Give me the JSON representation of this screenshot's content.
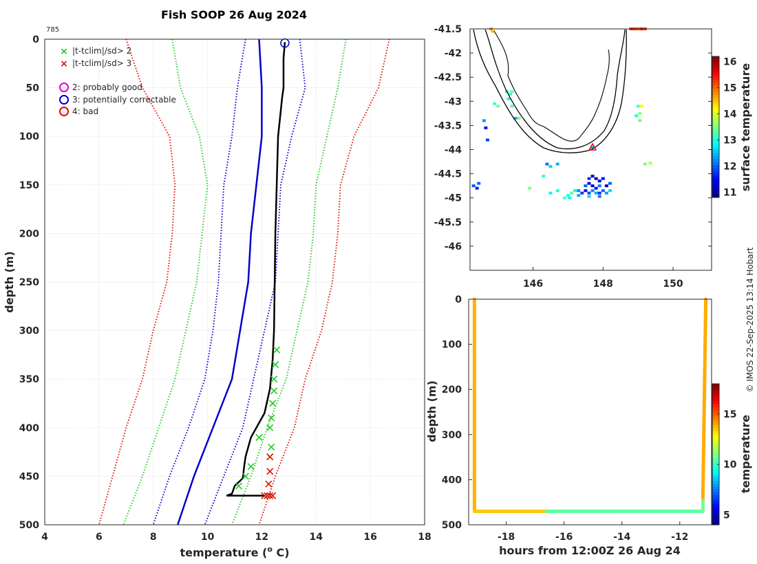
{
  "figure": {
    "title": "Fish SOOP 26 Aug 2024",
    "profile_id": "785",
    "credit": "© IMOS 22-Sep-2025 13:14 Hobart"
  },
  "colors": {
    "sd1": "#0000cc",
    "sd2": "#22cc22",
    "sd3": "#dd1100",
    "profile": "#000000",
    "flag_good": "#dd00dd",
    "flag_correctable": "#0000cc",
    "flag_bad": "#ee0000",
    "coast": "#000000"
  },
  "chart_data": [
    {
      "type": "line",
      "name": "profile",
      "xlabel": "temperature (",
      "xlabel_sup": "o",
      "xlabel_tail": " C)",
      "ylabel": "depth (m)",
      "xlim": [
        4,
        18
      ],
      "ylim": [
        500,
        0
      ],
      "xticks": [
        4,
        6,
        8,
        10,
        12,
        14,
        16,
        18
      ],
      "yticks": [
        0,
        50,
        100,
        150,
        200,
        250,
        300,
        350,
        400,
        450,
        500
      ],
      "grid": true,
      "legend": [
        {
          "label": "|t-tclim|/sd> 2",
          "marker": "x",
          "color": "#22cc22"
        },
        {
          "label": "|t-tclim|/sd> 3",
          "marker": "x",
          "color": "#dd1100"
        },
        {
          "label": "2: probably good",
          "marker": "o",
          "color": "#dd00dd"
        },
        {
          "label": "3: potentially correctable",
          "marker": "o",
          "color": "#0000cc"
        },
        {
          "label": "4: bad",
          "marker": "o",
          "color": "#ee0000"
        }
      ],
      "clim_lines": [
        {
          "name": "clim_mean",
          "style": "solid",
          "color": "#0000cc",
          "depth": [
            0,
            50,
            100,
            150,
            200,
            250,
            300,
            350,
            400,
            450,
            500
          ],
          "temp": [
            11.9,
            12.0,
            12.0,
            11.8,
            11.6,
            11.5,
            11.2,
            10.9,
            10.2,
            9.5,
            8.9
          ]
        },
        {
          "name": "minus_1sd",
          "style": "dotted",
          "color": "#0000cc",
          "depth": [
            0,
            50,
            100,
            150,
            200,
            250,
            300,
            350,
            400,
            450,
            500
          ],
          "temp": [
            11.4,
            11.1,
            10.9,
            10.6,
            10.5,
            10.4,
            10.2,
            9.9,
            9.3,
            8.6,
            8.0
          ]
        },
        {
          "name": "plus_1sd",
          "style": "dotted",
          "color": "#0000cc",
          "depth": [
            0,
            50,
            100,
            150,
            200,
            250,
            300,
            350,
            400,
            450,
            500
          ],
          "temp": [
            13.4,
            13.6,
            13.1,
            12.7,
            12.6,
            12.5,
            12.1,
            11.7,
            11.3,
            10.6,
            9.9
          ]
        },
        {
          "name": "minus_2sd",
          "style": "dotted",
          "color": "#22cc22",
          "depth": [
            0,
            50,
            100,
            150,
            200,
            250,
            300,
            350,
            400,
            450,
            500
          ],
          "temp": [
            8.7,
            9.0,
            9.7,
            10.0,
            9.8,
            9.6,
            9.2,
            8.8,
            8.2,
            7.6,
            6.9
          ]
        },
        {
          "name": "plus_2sd",
          "style": "dotted",
          "color": "#22cc22",
          "depth": [
            0,
            50,
            100,
            150,
            200,
            250,
            300,
            350,
            400,
            450,
            500
          ],
          "temp": [
            15.1,
            14.8,
            14.4,
            14.0,
            13.9,
            13.7,
            13.3,
            12.9,
            12.2,
            11.6,
            10.9
          ]
        },
        {
          "name": "minus_3sd",
          "style": "dotted",
          "color": "#dd1100",
          "depth": [
            0,
            50,
            100,
            150,
            200,
            250,
            300,
            350,
            400,
            450,
            500
          ],
          "temp": [
            7.0,
            7.6,
            8.6,
            8.8,
            8.7,
            8.5,
            8.0,
            7.6,
            7.0,
            6.5,
            6.0
          ]
        },
        {
          "name": "plus_3sd",
          "style": "dotted",
          "color": "#dd1100",
          "depth": [
            0,
            50,
            100,
            150,
            200,
            250,
            300,
            350,
            400,
            450,
            500
          ],
          "temp": [
            16.7,
            16.3,
            15.4,
            14.9,
            14.8,
            14.6,
            14.2,
            13.6,
            13.2,
            12.5,
            11.9
          ]
        }
      ],
      "profile": {
        "depth": [
          3,
          20,
          50,
          60,
          100,
          200,
          300,
          330,
          360,
          385,
          400,
          410,
          420,
          430,
          440,
          452,
          460,
          468,
          470
        ],
        "temp": [
          12.85,
          12.8,
          12.8,
          12.75,
          12.6,
          12.5,
          12.45,
          12.4,
          12.3,
          12.1,
          11.8,
          11.6,
          11.5,
          11.4,
          11.35,
          11.3,
          11.0,
          10.9,
          10.7
        ]
      },
      "sd2_flags": {
        "depth": [
          320,
          335,
          350,
          362,
          375,
          390,
          400,
          410,
          420,
          430,
          440,
          450,
          460
        ],
        "temp": [
          12.55,
          12.5,
          12.45,
          12.45,
          12.4,
          12.35,
          12.3,
          11.9,
          12.35,
          12.3,
          11.6,
          11.4,
          11.15
        ]
      },
      "sd3_flags": {
        "depth": [
          430,
          445,
          458,
          470,
          470,
          470,
          470
        ],
        "temp": [
          12.3,
          12.3,
          12.25,
          12.1,
          12.2,
          12.3,
          12.4
        ]
      },
      "qc_marker": {
        "depth": 4,
        "temp": 12.85,
        "flag": 3
      }
    },
    {
      "type": "heatmap",
      "name": "map",
      "xlim": [
        144.2,
        151.1
      ],
      "ylim": [
        -46.5,
        -41.5
      ],
      "xticks": [
        146,
        148,
        150
      ],
      "yticks": [
        -41.5,
        -42,
        -42.5,
        -43,
        -43.5,
        -44,
        -44.5,
        -45,
        -45.5,
        -46
      ],
      "colorbar_label": "surface temperature",
      "clim": [
        10.8,
        16.2
      ],
      "colorbar_ticks": [
        11,
        12,
        13,
        14,
        15,
        16
      ],
      "cells": [
        [
          144.8,
          -41.5,
          14.8
        ],
        [
          144.85,
          -41.55,
          14.5
        ],
        [
          148.8,
          -41.5,
          15.4
        ],
        [
          148.9,
          -41.5,
          15.3
        ],
        [
          149.0,
          -41.5,
          15.2
        ],
        [
          149.1,
          -41.5,
          15.5
        ],
        [
          149.2,
          -41.5,
          15.3
        ],
        [
          145.25,
          -42.8,
          13.0
        ],
        [
          145.35,
          -42.85,
          13.2
        ],
        [
          145.3,
          -42.95,
          12.9
        ],
        [
          145.4,
          -42.8,
          13.3
        ],
        [
          144.9,
          -43.05,
          13.1
        ],
        [
          145.0,
          -43.1,
          13.4
        ],
        [
          145.4,
          -43.1,
          13.2
        ],
        [
          145.5,
          -43.35,
          12.4
        ],
        [
          145.6,
          -43.35,
          13.6
        ],
        [
          144.6,
          -43.4,
          12.3
        ],
        [
          144.65,
          -43.55,
          11.6
        ],
        [
          144.7,
          -43.8,
          11.8
        ],
        [
          149.0,
          -43.1,
          13.3
        ],
        [
          149.1,
          -43.1,
          14.2
        ],
        [
          149.05,
          -43.25,
          13.6
        ],
        [
          148.95,
          -43.3,
          12.9
        ],
        [
          149.05,
          -43.4,
          13.4
        ],
        [
          147.7,
          -43.95,
          12.5
        ],
        [
          146.4,
          -44.3,
          12.1
        ],
        [
          146.5,
          -44.35,
          12.6
        ],
        [
          146.7,
          -44.3,
          12.4
        ],
        [
          149.2,
          -44.3,
          13.5
        ],
        [
          149.35,
          -44.28,
          13.8
        ],
        [
          144.3,
          -44.75,
          11.9
        ],
        [
          144.4,
          -44.8,
          11.6
        ],
        [
          144.45,
          -44.7,
          12.0
        ],
        [
          147.6,
          -44.6,
          11.7
        ],
        [
          147.7,
          -44.55,
          11.2
        ],
        [
          147.8,
          -44.6,
          11.0
        ],
        [
          147.9,
          -44.65,
          11.3
        ],
        [
          148.0,
          -44.6,
          11.5
        ],
        [
          147.5,
          -44.75,
          12.0
        ],
        [
          147.6,
          -44.7,
          11.2
        ],
        [
          147.7,
          -44.75,
          11.1
        ],
        [
          147.8,
          -44.8,
          11.6
        ],
        [
          147.9,
          -44.75,
          12.1
        ],
        [
          148.1,
          -44.75,
          11.0
        ],
        [
          148.2,
          -44.7,
          12.0
        ],
        [
          147.2,
          -44.85,
          12.9
        ],
        [
          147.3,
          -44.85,
          12.2
        ],
        [
          147.4,
          -44.9,
          11.8
        ],
        [
          147.5,
          -44.85,
          11.5
        ],
        [
          147.6,
          -44.9,
          11.9
        ],
        [
          147.7,
          -44.85,
          12.2
        ],
        [
          147.8,
          -44.9,
          12.4
        ],
        [
          147.9,
          -44.9,
          11.7
        ],
        [
          148.0,
          -44.85,
          12.0
        ],
        [
          148.1,
          -44.9,
          12.3
        ],
        [
          148.2,
          -44.85,
          12.6
        ],
        [
          147.0,
          -44.95,
          13.0
        ],
        [
          147.1,
          -44.9,
          13.3
        ],
        [
          147.3,
          -44.95,
          12.4
        ],
        [
          147.6,
          -44.97,
          12.6
        ],
        [
          147.9,
          -44.97,
          12.1
        ],
        [
          146.9,
          -45.0,
          13.2
        ],
        [
          147.05,
          -45.0,
          12.8
        ],
        [
          146.7,
          -44.85,
          13.0
        ],
        [
          145.9,
          -44.8,
          13.5
        ],
        [
          146.3,
          -44.55,
          13.1
        ],
        [
          146.5,
          -44.9,
          12.8
        ]
      ],
      "marker": {
        "lon": 147.7,
        "lat": -43.95
      }
    },
    {
      "type": "line",
      "name": "time_depth",
      "xlabel": "hours from 12:00Z 26 Aug 24",
      "ylabel": "depth (m)",
      "xlim": [
        -19.3,
        -10.9
      ],
      "ylim": [
        500,
        0
      ],
      "xticks": [
        -18,
        -16,
        -14,
        -12
      ],
      "yticks": [
        0,
        100,
        200,
        300,
        400,
        500
      ],
      "colorbar_label": "temperature",
      "clim": [
        4,
        18
      ],
      "colorbar_ticks": [
        5,
        10,
        15
      ],
      "segments": [
        {
          "hours": [
            -19.1,
            -19.1
          ],
          "depth": [
            0,
            470
          ],
          "temp": 13.8
        },
        {
          "hours": [
            -19.1,
            -16.6
          ],
          "depth": [
            470,
            470
          ],
          "temp": 13.5
        },
        {
          "hours": [
            -16.6,
            -11.2
          ],
          "depth": [
            470,
            470
          ],
          "temp": 10.5
        },
        {
          "hours": [
            -11.2,
            -11.2
          ],
          "depth": [
            470,
            440
          ],
          "temp": 10.8
        },
        {
          "hours": [
            -11.2,
            -11.1
          ],
          "depth": [
            440,
            0
          ],
          "temp": 13.9
        }
      ]
    }
  ]
}
